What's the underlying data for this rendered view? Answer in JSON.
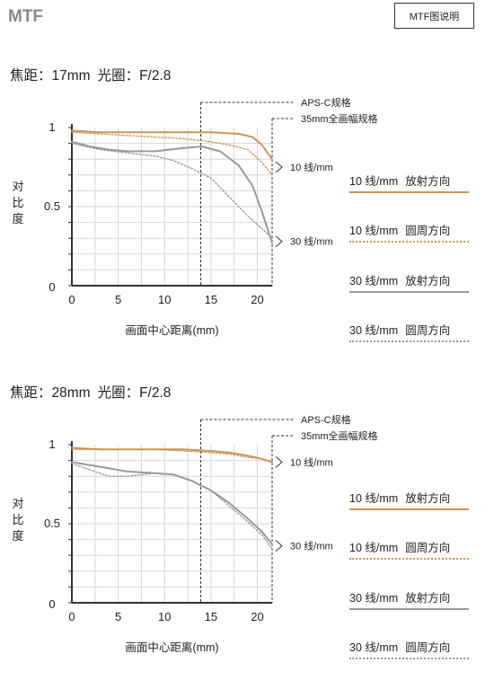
{
  "app": {
    "title": "MTF",
    "help_label": "MTF图说明"
  },
  "legend": [
    {
      "freq": "10 线/mm",
      "direction": "放射方向",
      "color": "#c8965c",
      "style": "solid"
    },
    {
      "freq": "10 线/mm",
      "direction": "圆周方向",
      "color": "#c8965c",
      "style": "dotted"
    },
    {
      "freq": "30 线/mm",
      "direction": "放射方向",
      "color": "#9a9a9a",
      "style": "solid"
    },
    {
      "freq": "30 线/mm",
      "direction": "圆周方向",
      "color": "#9a9a9a",
      "style": "dotted"
    }
  ],
  "chart_data": [
    {
      "type": "line",
      "focal_label": "焦距：17mm",
      "aperture_label": "光圈：F/2.8",
      "xlabel": "画面中心距离(mm)",
      "ylabel": "对比度",
      "xlim": [
        0,
        21.6
      ],
      "ylim": [
        0,
        1
      ],
      "xticks": [
        0,
        5,
        10,
        15,
        20
      ],
      "yticks": [
        {
          "v": 0,
          "label": "0"
        },
        {
          "v": 0.5,
          "label": "0.5"
        },
        {
          "v": 1,
          "label": "1"
        }
      ],
      "markers": [
        {
          "x": 13.9,
          "label": "APS-C规格"
        },
        {
          "x": 21.6,
          "label": "35mm全画幅规格"
        }
      ],
      "annotations": [
        {
          "y": 0.75,
          "label": "10 线/mm"
        },
        {
          "y": 0.28,
          "label": "30 线/mm"
        }
      ],
      "series": [
        {
          "x": [
            0,
            3,
            6,
            9,
            12,
            15,
            18,
            19.5,
            20.5,
            21.6
          ],
          "y": [
            0.98,
            0.97,
            0.97,
            0.97,
            0.97,
            0.97,
            0.96,
            0.94,
            0.89,
            0.8
          ],
          "color": "#c8965c",
          "style": "solid"
        },
        {
          "x": [
            0,
            3,
            6,
            9,
            12,
            15,
            17,
            19,
            20.5,
            21.6
          ],
          "y": [
            0.97,
            0.96,
            0.95,
            0.94,
            0.93,
            0.91,
            0.89,
            0.86,
            0.78,
            0.7
          ],
          "color": "#c8965c",
          "style": "dotted"
        },
        {
          "x": [
            0,
            2,
            4,
            6,
            9,
            12,
            14,
            16,
            18,
            19.5,
            20.5,
            21.6
          ],
          "y": [
            0.91,
            0.88,
            0.86,
            0.85,
            0.85,
            0.87,
            0.88,
            0.85,
            0.76,
            0.63,
            0.47,
            0.27
          ],
          "color": "#9a9a9a",
          "style": "solid"
        },
        {
          "x": [
            0,
            3,
            6,
            9,
            11,
            13,
            15,
            17,
            19,
            20.5,
            21.6
          ],
          "y": [
            0.9,
            0.86,
            0.84,
            0.82,
            0.79,
            0.74,
            0.68,
            0.56,
            0.44,
            0.36,
            0.3
          ],
          "color": "#9a9a9a",
          "style": "dotted"
        }
      ]
    },
    {
      "type": "line",
      "focal_label": "焦距：28mm",
      "aperture_label": "光圈：F/2.8",
      "xlabel": "画面中心距离(mm)",
      "ylabel": "对比度",
      "xlim": [
        0,
        21.6
      ],
      "ylim": [
        0,
        1
      ],
      "xticks": [
        0,
        5,
        10,
        15,
        20
      ],
      "yticks": [
        {
          "v": 0,
          "label": "0"
        },
        {
          "v": 0.5,
          "label": "0.5"
        },
        {
          "v": 1,
          "label": "1"
        }
      ],
      "markers": [
        {
          "x": 13.9,
          "label": "APS-C规格"
        },
        {
          "x": 21.6,
          "label": "35mm全画幅规格"
        }
      ],
      "annotations": [
        {
          "y": 0.89,
          "label": "10 线/mm"
        },
        {
          "y": 0.36,
          "label": "30 线/mm"
        }
      ],
      "series": [
        {
          "x": [
            0,
            3,
            6,
            9,
            12,
            15,
            17,
            19,
            20.5,
            21.6
          ],
          "y": [
            0.98,
            0.97,
            0.97,
            0.97,
            0.97,
            0.96,
            0.95,
            0.93,
            0.91,
            0.89
          ],
          "color": "#c8965c",
          "style": "solid"
        },
        {
          "x": [
            0,
            3,
            6,
            9,
            12,
            15,
            17,
            19,
            20.5,
            21.6
          ],
          "y": [
            0.97,
            0.97,
            0.97,
            0.97,
            0.96,
            0.95,
            0.94,
            0.92,
            0.91,
            0.89
          ],
          "color": "#c8965c",
          "style": "dotted"
        },
        {
          "x": [
            0,
            3,
            6,
            9,
            11,
            13,
            15,
            17,
            19,
            20.5,
            21.6
          ],
          "y": [
            0.89,
            0.86,
            0.83,
            0.82,
            0.81,
            0.77,
            0.71,
            0.63,
            0.53,
            0.45,
            0.37
          ],
          "color": "#9a9a9a",
          "style": "solid"
        },
        {
          "x": [
            0,
            2,
            4,
            6,
            9,
            11,
            13,
            15,
            17,
            19,
            20.5,
            21.6
          ],
          "y": [
            0.88,
            0.84,
            0.8,
            0.8,
            0.82,
            0.81,
            0.77,
            0.71,
            0.61,
            0.51,
            0.43,
            0.34
          ],
          "color": "#9a9a9a",
          "style": "dotted"
        }
      ]
    }
  ]
}
